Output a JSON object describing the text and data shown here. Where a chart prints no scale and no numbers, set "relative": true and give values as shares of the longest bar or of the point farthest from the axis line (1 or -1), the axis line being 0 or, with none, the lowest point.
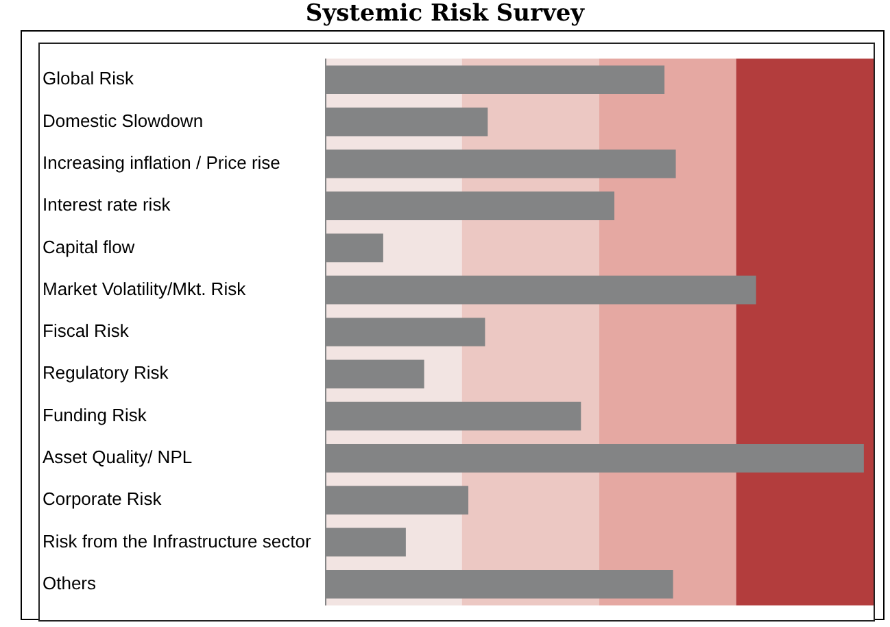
{
  "chart_data": {
    "type": "bar",
    "orientation": "horizontal",
    "relative": true,
    "title": "Systemic Risk Survey",
    "categories": [
      "Global Risk",
      "Domestic Slowdown",
      "Increasing inflation / Price rise",
      "Interest rate risk",
      "Capital flow",
      "Market Volatility/Mkt. Risk",
      "Fiscal Risk",
      "Regulatory Risk",
      "Funding Risk",
      "Asset Quality/ NPL",
      "Corporate Risk",
      "Risk from the Infrastructure sector",
      "Others"
    ],
    "values": [
      0.63,
      0.302,
      0.651,
      0.537,
      0.108,
      0.8,
      0.297,
      0.184,
      0.475,
      1,
      0.266,
      0.15,
      0.646
    ],
    "color": "#838485",
    "bands": [
      {
        "axis": "x",
        "from": 0,
        "to": 0.254,
        "color": "#f2e4e2"
      },
      {
        "axis": "x",
        "from": 0.254,
        "to": 0.509,
        "color": "#ecc8c3"
      },
      {
        "axis": "x",
        "from": 0.509,
        "to": 0.763,
        "color": "#e5a8a2"
      },
      {
        "axis": "x",
        "from": 0.763,
        "to": 1.018,
        "color": "#b33d3d"
      }
    ],
    "legend": false
  }
}
